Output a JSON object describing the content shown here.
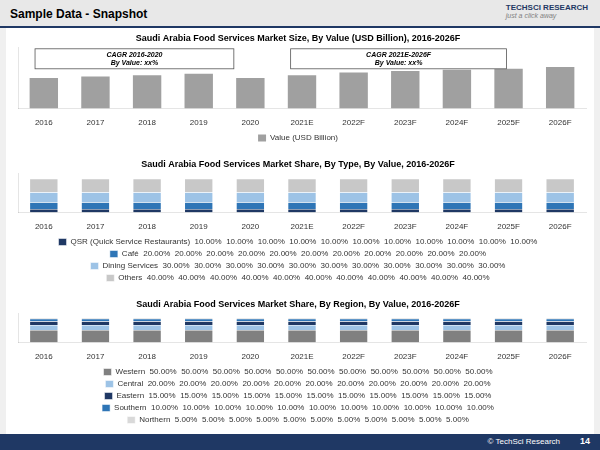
{
  "title": "Sample Data - Snapshot",
  "annotations": [
    "TECHSCI RESEARCH",
    "just a click away",
    "© TechSci Research",
    "14"
  ],
  "chart_data": [
    {
      "type": "bar",
      "title": "Saudi Arabia Food Services Market Size, By Value (USD Billion), 2016-2026F",
      "categories": [
        "2016",
        "2017",
        "2018",
        "2019",
        "2020",
        "2021E",
        "2022F",
        "2023F",
        "2024F",
        "2025F",
        "2026F"
      ],
      "series": [
        {
          "name": "Value (USD Billion)",
          "color": "#a0a0a0",
          "values": [
            0.55,
            0.58,
            0.6,
            0.63,
            0.55,
            0.6,
            0.65,
            0.68,
            0.7,
            0.72,
            0.75
          ]
        }
      ],
      "ylim": [
        0,
        1.1
      ],
      "tick_labels": "x",
      "grid": false,
      "legend": "bottom",
      "annotations": [
        "CAGR 2016-2020\nBy Value: xx%",
        "CAGR 2021E-2026F\nBy Value: xx%"
      ]
    },
    {
      "type": "bar",
      "title": "Saudi Arabia Food Services Market Share, By Type, By Value, 2016-2026F",
      "categories": [
        "2016",
        "2017",
        "2018",
        "2019",
        "2020",
        "2021E",
        "2022F",
        "2023F",
        "2024F",
        "2025F",
        "2026F"
      ],
      "series": [
        {
          "name": "QSR (Quick Service Restaurants)  10.00%  10.00%  10.00%  10.00%  10.00%  10.00%  10.00%  10.00%  10.00%  10.00%  10.00%",
          "color": "#1f3864",
          "values": [
            10,
            10,
            10,
            10,
            10,
            10,
            10,
            10,
            10,
            10,
            10
          ]
        },
        {
          "name": "Café  20.00%  20.00%  20.00%  20.00%  20.00%  20.00%  20.00%  20.00%  20.00%  20.00%  20.00%",
          "color": "#2e75b6",
          "values": [
            20,
            20,
            20,
            20,
            20,
            20,
            20,
            20,
            20,
            20,
            20
          ]
        },
        {
          "name": "Dining Services  30.00%  30.00%  30.00%  30.00%  30.00%  30.00%  30.00%  30.00%  30.00%  30.00%  30.00%",
          "color": "#9dc3e6",
          "values": [
            30,
            30,
            30,
            30,
            30,
            30,
            30,
            30,
            30,
            30,
            30
          ]
        },
        {
          "name": "Others  40.00%  40.00%  40.00%  40.00%  40.00%  40.00%  40.00%  40.00%  40.00%  40.00%  40.00%",
          "color": "#c8c8c8",
          "values": [
            40,
            40,
            40,
            40,
            40,
            40,
            40,
            40,
            40,
            40,
            40
          ]
        }
      ],
      "stacked": true,
      "ylim": [
        0,
        115
      ],
      "tick_labels": "x",
      "grid": false,
      "legend": "bottom"
    },
    {
      "type": "bar",
      "title": "Saudi Arabia Food Services Market Share, By Region, By Value, 2016-2026F",
      "categories": [
        "2016",
        "2017",
        "2018",
        "2019",
        "2020",
        "2021E",
        "2022F",
        "2023F",
        "2024F",
        "2025F",
        "2026F"
      ],
      "series": [
        {
          "name": "Western  50.00%  50.00%  50.00%  50.00%  50.00%  50.00%  50.00%  50.00%  50.00%  50.00%  50.00%",
          "color": "#808080",
          "values": [
            50,
            50,
            50,
            50,
            50,
            50,
            50,
            50,
            50,
            50,
            50
          ]
        },
        {
          "name": "Central  20.00%  20.00%  20.00%  20.00%  20.00%  20.00%  20.00%  20.00%  20.00%  20.00%  20.00%",
          "color": "#9dc3e6",
          "values": [
            20,
            20,
            20,
            20,
            20,
            20,
            20,
            20,
            20,
            20,
            20
          ]
        },
        {
          "name": "Eastern  15.00%  15.00%  15.00%  15.00%  15.00%  15.00%  15.00%  15.00%  15.00%  15.00%  15.00%",
          "color": "#1f3864",
          "values": [
            15,
            15,
            15,
            15,
            15,
            15,
            15,
            15,
            15,
            15,
            15
          ]
        },
        {
          "name": "Southern  10.00%  10.00%  10.00%  10.00%  10.00%  10.00%  10.00%  10.00%  10.00%  10.00%  10.00%",
          "color": "#2e75b6",
          "values": [
            10,
            10,
            10,
            10,
            10,
            10,
            10,
            10,
            10,
            10,
            10
          ]
        },
        {
          "name": "Northern  5.00%  5.00%  5.00%  5.00%  5.00%  5.00%  5.00%  5.00%  5.00%  5.00%  5.00%",
          "color": "#d9d9d9",
          "values": [
            5,
            5,
            5,
            5,
            5,
            5,
            5,
            5,
            5,
            5,
            5
          ]
        }
      ],
      "stacked": true,
      "ylim": [
        0,
        115
      ],
      "tick_labels": "x",
      "grid": false,
      "legend": "bottom"
    }
  ]
}
